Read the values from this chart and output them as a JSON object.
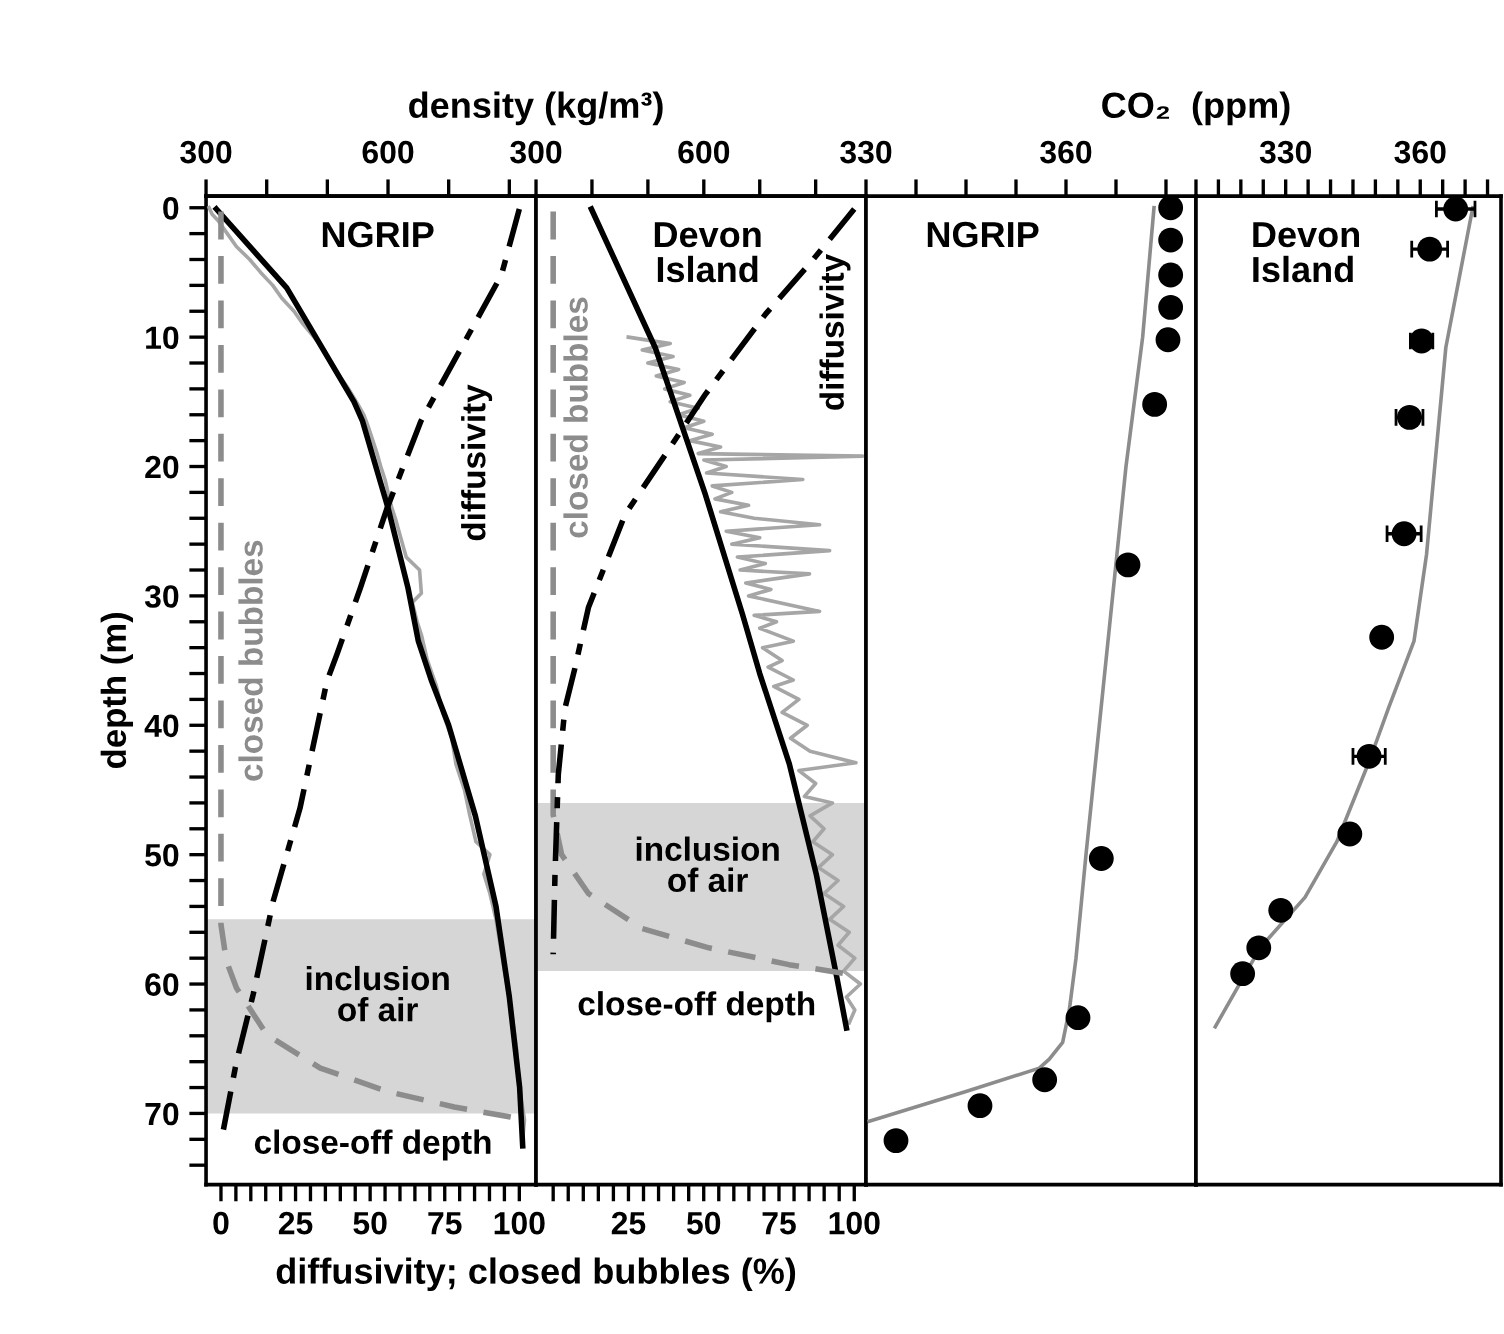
{
  "chart_data": [
    {
      "type": "line",
      "title": "NGRIP",
      "xlabel": "diffusivity; closed bubbles (%)",
      "x2label": "density (kg/m³)",
      "ylabel": "depth (m)",
      "xlim": [
        -5,
        105.6
      ],
      "xticks": [
        0,
        {
          "value": 5,
          "label": null
        },
        {
          "value": 10,
          "label": null
        },
        {
          "value": 15,
          "label": null
        },
        {
          "value": 20,
          "label": null
        },
        25,
        {
          "value": 30,
          "label": null
        },
        {
          "value": 35,
          "label": null
        },
        {
          "value": 40,
          "label": null
        },
        {
          "value": 45,
          "label": null
        },
        50,
        {
          "value": 55,
          "label": null
        },
        {
          "value": 60,
          "label": null
        },
        {
          "value": 65,
          "label": null
        },
        {
          "value": 70,
          "label": null
        },
        75,
        {
          "value": 80,
          "label": null
        },
        {
          "value": 85,
          "label": null
        },
        {
          "value": 90,
          "label": null
        },
        {
          "value": 95,
          "label": null
        },
        100
      ],
      "x2lim": [
        300,
        844
      ],
      "x2ticks": [
        300,
        {
          "value": 400,
          "label": null
        },
        {
          "value": 500,
          "label": null
        },
        600,
        {
          "value": 700,
          "label": null
        },
        {
          "value": 800,
          "label": null
        }
      ],
      "ylim": [
        75.5,
        -0.9
      ],
      "yticks": [
        0,
        {
          "value": 2,
          "label": null
        },
        {
          "value": 4,
          "label": null
        },
        {
          "value": 6,
          "label": null
        },
        {
          "value": 8,
          "label": null
        },
        10,
        {
          "value": 12,
          "label": null
        },
        {
          "value": 14,
          "label": null
        },
        {
          "value": 16,
          "label": null
        },
        {
          "value": 18,
          "label": null
        },
        20,
        {
          "value": 22,
          "label": null
        },
        {
          "value": 24,
          "label": null
        },
        {
          "value": 26,
          "label": null
        },
        {
          "value": 28,
          "label": null
        },
        30,
        {
          "value": 32,
          "label": null
        },
        {
          "value": 34,
          "label": null
        },
        {
          "value": 36,
          "label": null
        },
        {
          "value": 38,
          "label": null
        },
        40,
        {
          "value": 42,
          "label": null
        },
        {
          "value": 44,
          "label": null
        },
        {
          "value": 46,
          "label": null
        },
        {
          "value": 48,
          "label": null
        },
        50,
        {
          "value": 52,
          "label": null
        },
        {
          "value": 54,
          "label": null
        },
        {
          "value": 56,
          "label": null
        },
        {
          "value": 58,
          "label": null
        },
        60,
        {
          "value": 62,
          "label": null
        },
        {
          "value": 64,
          "label": null
        },
        {
          "value": 66,
          "label": null
        },
        {
          "value": 68,
          "label": null
        },
        70,
        {
          "value": 72,
          "label": null
        },
        {
          "value": 74,
          "label": null
        }
      ],
      "bands": [
        {
          "axis": "y",
          "from": 55,
          "to": 70,
          "label": "inclusion of air",
          "color": "#d6d6d6"
        }
      ],
      "annotations": [
        "close-off depth"
      ],
      "series": [
        {
          "axis": "x2",
          "color": "#a6a6a6",
          "line_style": "solid",
          "x": [
            305,
            310,
            320,
            335,
            350,
            372,
            390,
            410,
            425,
            445,
            460,
            478,
            495,
            505,
            520,
            535,
            548,
            560,
            568,
            575,
            582,
            588,
            595,
            600,
            605,
            612,
            618,
            624,
            630,
            652,
            655,
            640,
            648,
            655,
            665,
            680,
            690,
            705,
            712,
            726,
            735,
            745,
            768,
            758,
            768,
            778,
            785,
            792,
            800,
            806,
            812,
            815,
            820,
            825,
            822
          ],
          "values": [
            0,
            0.5,
            1,
            2,
            3,
            4,
            5,
            6,
            7,
            8,
            9,
            10,
            11,
            12,
            13,
            14,
            15,
            16,
            17,
            18,
            19,
            20,
            21,
            22,
            23,
            24,
            25,
            26,
            27,
            28,
            29.8,
            30.5,
            32,
            33,
            35,
            37,
            39,
            41,
            43,
            45,
            47,
            49,
            50,
            51.5,
            53,
            55,
            57,
            59,
            61,
            63,
            65,
            67,
            69,
            70.5,
            72
          ]
        },
        {
          "axis": "x2",
          "color": "#000000",
          "line_style": "solid",
          "x": [
            317,
            433,
            544,
            558,
            600,
            633,
            650,
            672,
            700,
            744,
            778,
            800,
            817,
            822
          ],
          "values": [
            0.1,
            6.2,
            15,
            16.5,
            23.2,
            29.4,
            33.5,
            36.6,
            40,
            47,
            54,
            61,
            68,
            72.5
          ]
        },
        {
          "name": "closed bubbles",
          "color": "#8c8c8c",
          "line_style": "dashed",
          "x": [
            0,
            0,
            1.8,
            5.2,
            15.3,
            33.3,
            55.7,
            78.2,
            100
          ],
          "values": [
            0.3,
            55.4,
            58.2,
            60.3,
            63.9,
            66.5,
            68.3,
            69.5,
            70.4
          ]
        },
        {
          "name": "diffusivity",
          "color": "#000000",
          "line_style": "dashdot",
          "x": [
            100,
            94,
            78,
            67,
            55.7,
            46.7,
            38.9,
            35.5,
            26.5,
            17.5,
            10.8,
            5.2,
            0.7
          ],
          "values": [
            0.1,
            5.2,
            11.9,
            16.5,
            23.2,
            29.4,
            34.5,
            36.6,
            46.4,
            53.6,
            60.8,
            66,
            71.4
          ]
        }
      ],
      "tick_labels": "xy"
    },
    {
      "type": "line",
      "title": "Devon Island",
      "xlim": [
        -5.7,
        103.9
      ],
      "xticks": [
        {
          "value": 0,
          "label": null
        },
        {
          "value": 5,
          "label": null
        },
        {
          "value": 10,
          "label": null
        },
        {
          "value": 15,
          "label": null
        },
        {
          "value": 20,
          "label": null
        },
        25,
        {
          "value": 30,
          "label": null
        },
        {
          "value": 35,
          "label": null
        },
        {
          "value": 40,
          "label": null
        },
        {
          "value": 45,
          "label": null
        },
        50,
        {
          "value": 55,
          "label": null
        },
        {
          "value": 60,
          "label": null
        },
        {
          "value": 65,
          "label": null
        },
        {
          "value": 70,
          "label": null
        },
        75,
        {
          "value": 80,
          "label": null
        },
        {
          "value": 85,
          "label": null
        },
        {
          "value": 90,
          "label": null
        },
        {
          "value": 95,
          "label": null
        },
        100
      ],
      "x2lim": [
        300,
        890
      ],
      "x2ticks": [
        300,
        {
          "value": 400,
          "label": null
        },
        {
          "value": 500,
          "label": null
        },
        600,
        {
          "value": 700,
          "label": null
        },
        {
          "value": 800,
          "label": null
        }
      ],
      "ylim": [
        75.5,
        -0.9
      ],
      "bands": [
        {
          "axis": "y",
          "from": 46,
          "to": 59,
          "label": "inclusion of air",
          "color": "#d6d6d6"
        }
      ],
      "annotations": [
        "close-off depth"
      ],
      "series": [
        {
          "axis": "x2",
          "color": "#a6a6a6",
          "line_style": "solid",
          "x": [
            465,
            540,
            490,
            545,
            500,
            555,
            515,
            565,
            530,
            575,
            540,
            590,
            555,
            600,
            565,
            615,
            575,
            630,
            590,
            884,
            600,
            640,
            605,
            777,
            615,
            650,
            620,
            680,
            630,
            690,
            807,
            640,
            700,
            650,
            825,
            660,
            710,
            665,
            789,
            675,
            720,
            680,
            807,
            690,
            730,
            700,
            760,
            705,
            740,
            715,
            760,
            725,
            770,
            740,
            785,
            755,
            790,
            872,
            770,
            800,
            780,
            830,
            790,
            815,
            795,
            830,
            805,
            840,
            815,
            850,
            825,
            860,
            840,
            870,
            850,
            880,
            855,
            870,
            860
          ],
          "values": [
            10,
            10.5,
            11,
            11.5,
            12,
            12.5,
            13,
            13.5,
            14,
            14.5,
            15,
            15.5,
            16,
            16.5,
            17,
            17.5,
            18,
            18.5,
            19,
            19.2,
            19.5,
            20,
            20.5,
            21,
            21.5,
            22,
            22.5,
            23,
            23.5,
            24,
            24.5,
            25,
            25.5,
            26,
            26.5,
            27,
            27.5,
            28,
            28.3,
            29,
            29.5,
            30,
            31.2,
            31.5,
            32,
            32.5,
            33.5,
            34,
            35,
            35.5,
            36.5,
            37,
            38,
            39,
            40,
            41,
            42,
            42.9,
            43.5,
            44.5,
            45.5,
            46,
            47,
            48,
            49,
            50,
            51,
            52,
            53,
            54,
            55,
            56,
            57,
            58,
            59,
            60,
            61,
            62,
            63
          ]
        },
        {
          "axis": "x2",
          "color": "#000000",
          "line_style": "solid",
          "x": [
            399,
            513,
            603,
            669,
            700,
            753,
            801,
            837,
            855
          ],
          "values": [
            0.1,
            10.8,
            22.2,
            31.4,
            36,
            43,
            51.5,
            59.3,
            63.4
          ]
        },
        {
          "name": "closed bubbles",
          "color": "#8c8c8c",
          "line_style": "dashed",
          "x": [
            0,
            0,
            2.8,
            11.7,
            29.4,
            51.7,
            78.3,
            100
          ],
          "values": [
            0.3,
            46.9,
            50,
            53,
            55.7,
            57.2,
            58.5,
            59.3
          ]
        },
        {
          "name": "diffusivity",
          "color": "#000000",
          "line_style": "dashdot",
          "x": [
            100,
            86,
            70.6,
            50.6,
            37.2,
            23.9,
            11.7,
            7.2,
            3.9,
            1.7,
            0.6,
            0
          ],
          "values": [
            0.1,
            4.1,
            8.2,
            14.4,
            19.1,
            23.7,
            30.9,
            35.6,
            38.7,
            43.8,
            51.5,
            57.7
          ]
        }
      ],
      "tick_labels": "x"
    },
    {
      "type": "scatter",
      "title": "NGRIP",
      "xlabel": "CO₂  (ppm)",
      "xlim": [
        330,
        379.5
      ],
      "xticks": [
        330,
        {
          "value": 337.5,
          "label": null
        },
        {
          "value": 345,
          "label": null
        },
        {
          "value": 352.5,
          "label": null
        },
        360,
        {
          "value": 367.5,
          "label": null
        },
        {
          "value": 375,
          "label": null
        }
      ],
      "ylim": [
        75.5,
        -0.9
      ],
      "series": [
        {
          "type": "line",
          "color": "#8c8c8c",
          "line_style": "solid",
          "x": [
            373.2,
            371.5,
            369,
            367,
            365,
            363,
            361.5,
            360.5,
            359.5,
            357.5,
            356,
            345,
            330.5
          ],
          "values": [
            0,
            10,
            20,
            30,
            40,
            50,
            58,
            62,
            64.5,
            65.8,
            66.5,
            68.3,
            70.6
          ]
        },
        {
          "color": "#000000",
          "marker": "circle",
          "x": [
            375.7,
            375.7,
            375.7,
            375.7,
            375.3,
            373.3,
            369.3,
            365.3,
            361.8,
            356.8,
            347.1,
            334.5
          ],
          "values": [
            0,
            2.5,
            5.2,
            7.7,
            10.2,
            15.2,
            27.6,
            50.3,
            62.6,
            67.4,
            69.4,
            72.1
          ]
        }
      ],
      "tick_labels": "x"
    },
    {
      "type": "scatter",
      "title": "Devon Island",
      "xlim": [
        310,
        378
      ],
      "xticks": [
        {
          "value": 310,
          "label": null
        },
        {
          "value": 315,
          "label": null
        },
        {
          "value": 320,
          "label": null
        },
        {
          "value": 325,
          "label": null
        },
        330,
        {
          "value": 335,
          "label": null
        },
        {
          "value": 340,
          "label": null
        },
        {
          "value": 345,
          "label": null
        },
        {
          "value": 350,
          "label": null
        },
        {
          "value": 355,
          "label": null
        },
        360,
        {
          "value": 365,
          "label": null
        },
        {
          "value": 370,
          "label": null
        },
        {
          "value": 375,
          "label": null
        }
      ],
      "ylim": [
        75.5,
        -0.9
      ],
      "series": [
        {
          "type": "line",
          "color": "#8c8c8c",
          "line_style": "solid",
          "x": [
            371.7,
            365.7,
            361.4,
            358.6,
            352.9,
            348.6,
            341.4,
            334.3,
            324.3,
            314.3
          ],
          "values": [
            0,
            10.8,
            26.8,
            33.5,
            38.7,
            42.8,
            49,
            53.3,
            57.2,
            63.3
          ]
        },
        {
          "color": "#000000",
          "marker": "circle",
          "x": [
            367.9,
            362.1,
            360.3,
            357.6,
            356.4,
            351.4,
            348.6,
            344.3,
            328.9,
            324,
            320.4
          ],
          "values": [
            0.1,
            3.2,
            10.3,
            16.2,
            25.2,
            33.2,
            42.4,
            48.4,
            54.3,
            57.2,
            59.2
          ],
          "xerrors": [
            4.3,
            4,
            2.5,
            3,
            3.8,
            1,
            3.6,
            1.5,
            null,
            null,
            null
          ]
        }
      ],
      "tick_labels": "x"
    }
  ]
}
